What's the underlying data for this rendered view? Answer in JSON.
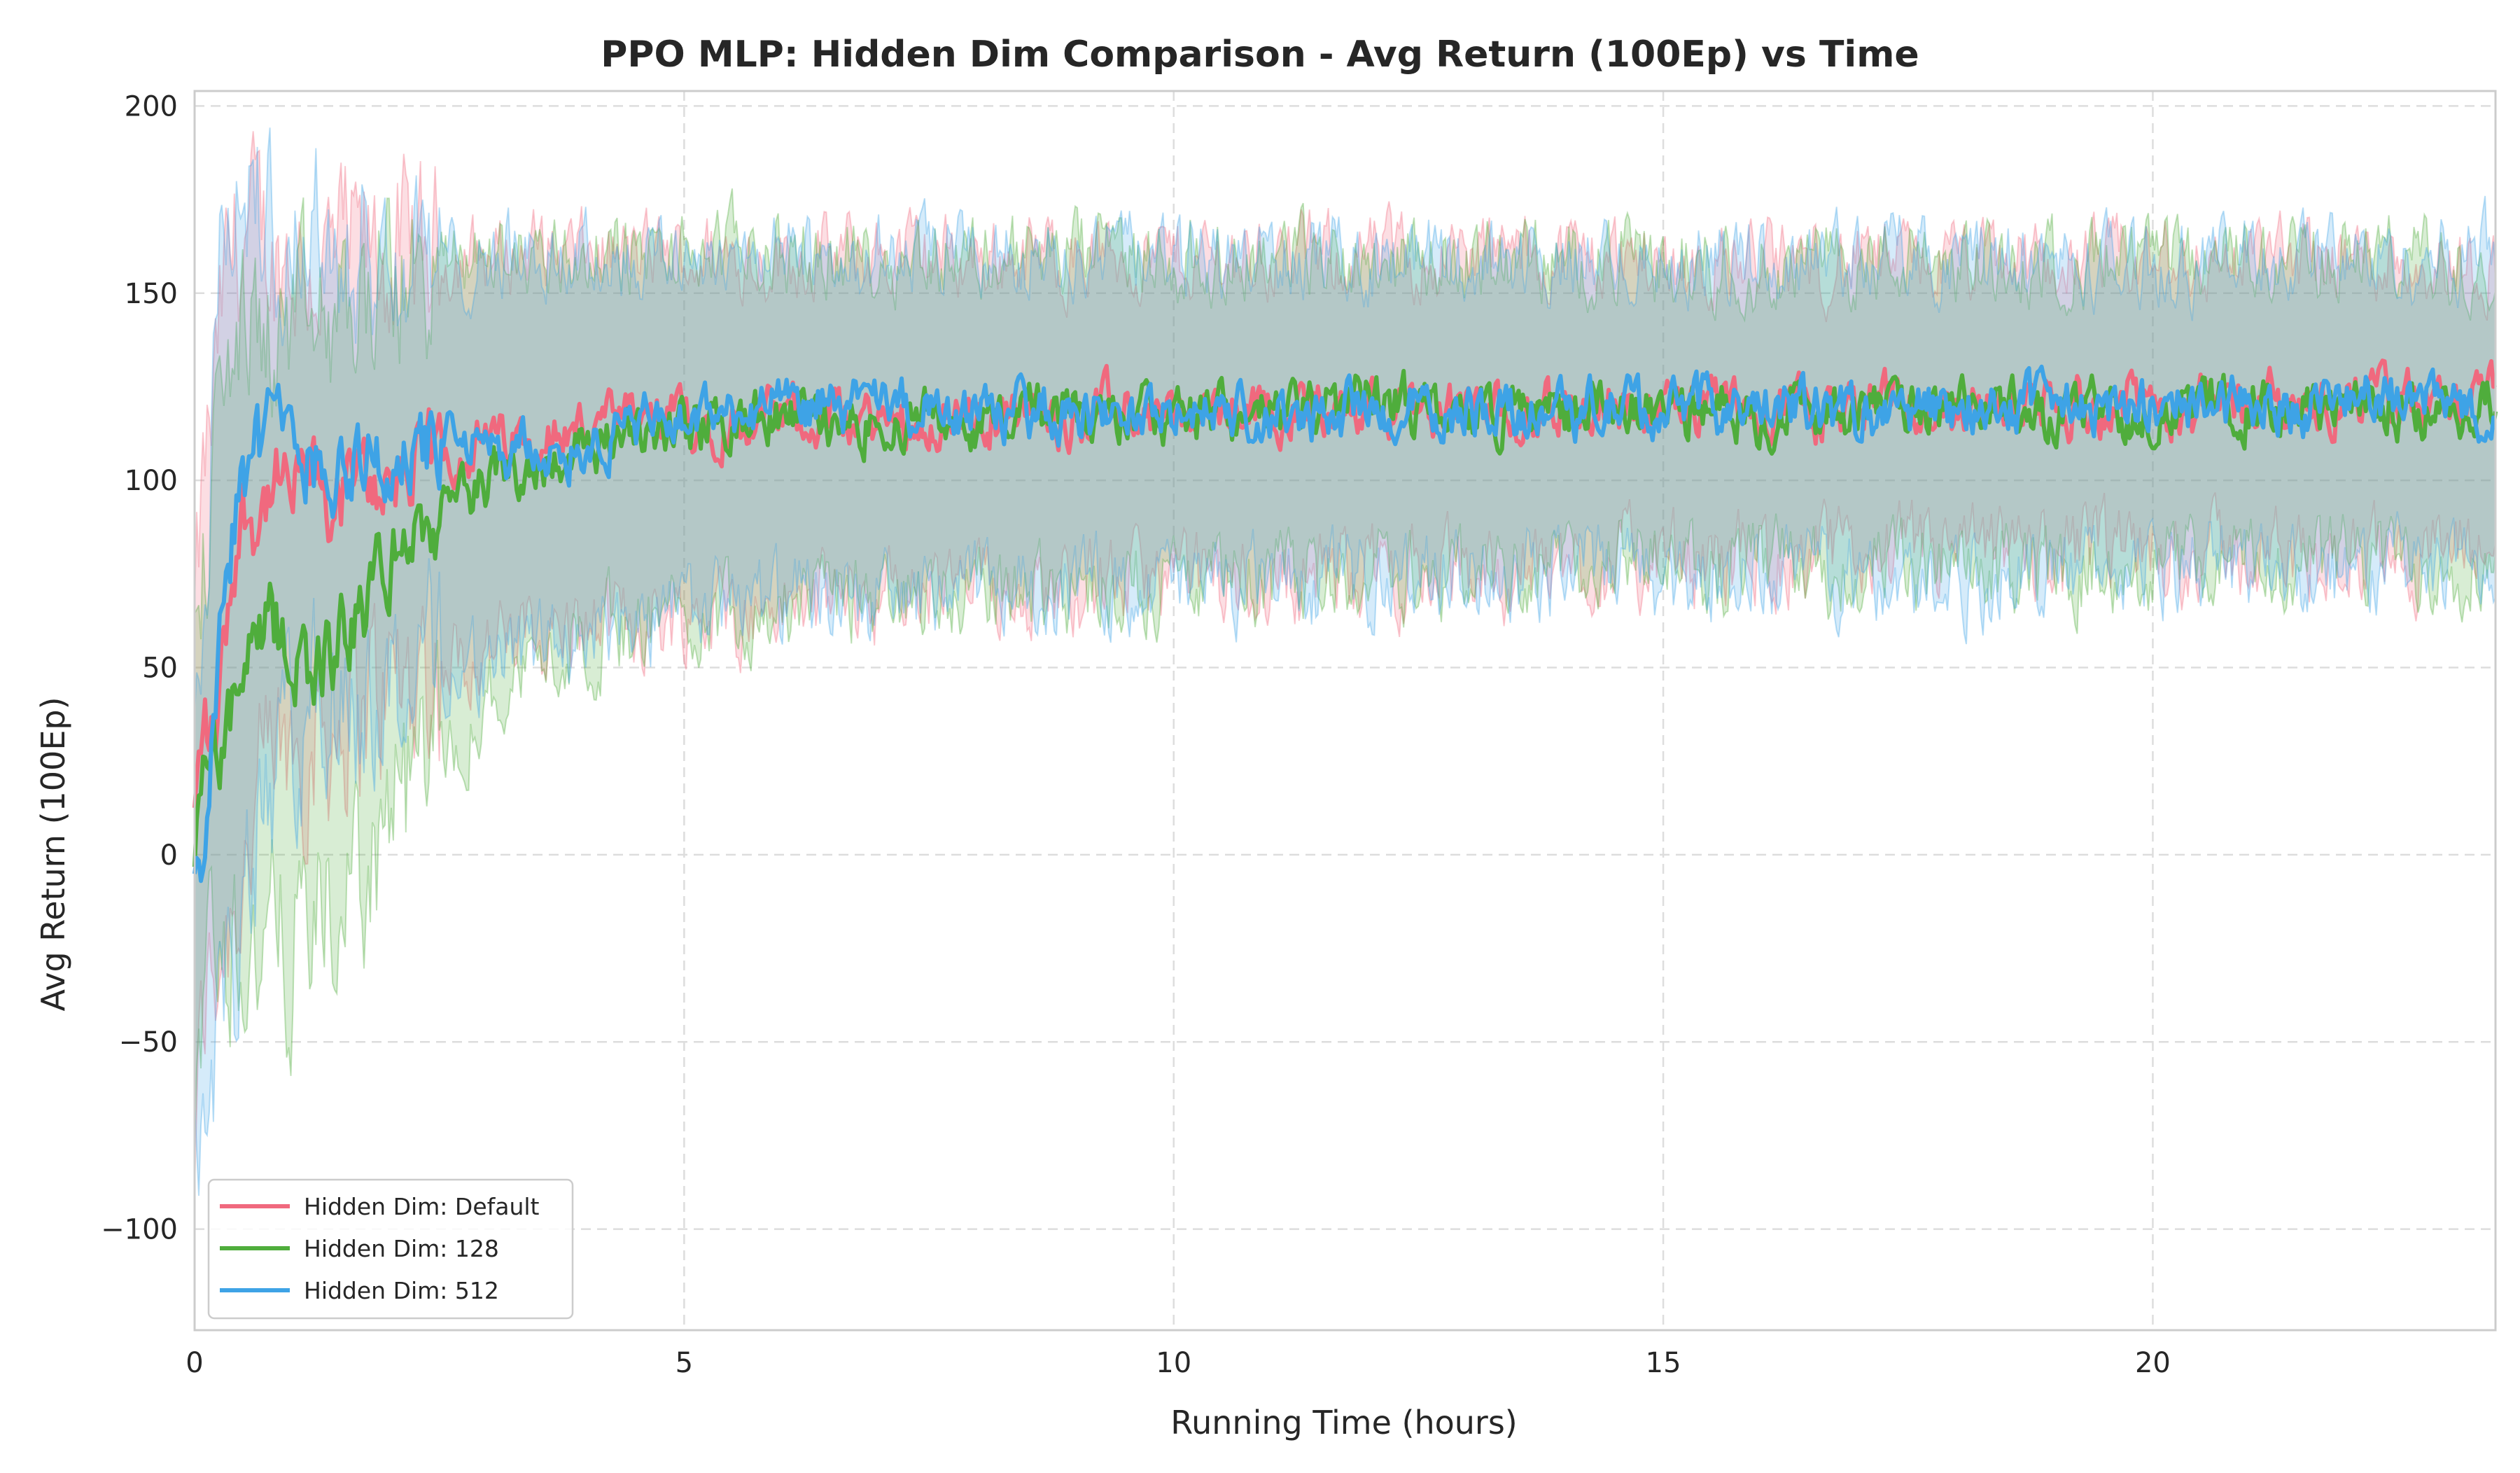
{
  "chart_data": {
    "type": "line",
    "title": "PPO MLP: Hidden Dim Comparison - Avg Return (100Ep) vs Time",
    "xlabel": "Running Time (hours)",
    "ylabel": "Avg Return (100Ep)",
    "xlim": [
      0,
      23.5
    ],
    "ylim": [
      -127,
      204
    ],
    "xticks": [
      0,
      5,
      10,
      15,
      20
    ],
    "yticks": [
      -100,
      -50,
      0,
      50,
      100,
      150,
      200
    ],
    "xtick_labels": [
      "0",
      "5",
      "10",
      "15",
      "20"
    ],
    "ytick_labels": [
      "−100",
      "−50",
      "0",
      "50",
      "100",
      "150",
      "200"
    ],
    "grid": true,
    "legend_position": "lower-left",
    "series": [
      {
        "name": "Hidden Dim: Default",
        "color": "#f0697e",
        "x": [
          0,
          0.1,
          0.2,
          0.3,
          0.4,
          0.5,
          0.6,
          0.8,
          1.0,
          1.2,
          1.4,
          1.6,
          1.8,
          2.0,
          2.3,
          2.6,
          3.0,
          3.5,
          4.0,
          4.5,
          5.0,
          5.5,
          6.0,
          6.5,
          7.0,
          7.5,
          8.0,
          8.5,
          9.0,
          9.5,
          10.0,
          10.5,
          11.0,
          11.5,
          12.0,
          12.5,
          13.0,
          13.5,
          14.0,
          14.5,
          15.0,
          15.5,
          16.0,
          16.5,
          17.0,
          17.5,
          18.0,
          18.5,
          19.0,
          19.5,
          20.0,
          20.5,
          21.0,
          21.5,
          22.0,
          22.5,
          23.0,
          23.5
        ],
        "y": [
          10,
          35,
          30,
          55,
          80,
          92,
          90,
          98,
          95,
          100,
          92,
          100,
          97,
          103,
          102,
          108,
          110,
          112,
          114,
          115,
          116,
          116,
          117,
          118,
          115,
          117,
          116,
          118,
          117,
          119,
          117,
          118,
          119,
          120,
          121,
          120,
          119,
          118,
          119,
          120,
          118,
          119,
          120,
          118,
          119,
          120,
          121,
          120,
          119,
          120,
          121,
          120,
          122,
          120,
          121,
          122,
          120,
          121
        ],
        "upper": [
          60,
          100,
          120,
          150,
          160,
          165,
          165,
          160,
          160,
          158,
          158,
          160,
          158,
          160,
          158,
          160,
          160,
          162,
          160,
          160,
          160,
          160,
          160,
          160,
          160,
          160,
          160,
          160,
          160,
          160,
          160,
          160,
          160,
          160,
          160,
          160,
          160,
          160,
          160,
          160,
          158,
          158,
          158,
          158,
          158,
          158,
          158,
          158,
          158,
          158,
          158,
          158,
          160,
          160,
          160,
          160,
          158,
          158
        ],
        "lower": [
          -80,
          -40,
          -30,
          -20,
          -10,
          0,
          10,
          20,
          30,
          35,
          35,
          40,
          42,
          45,
          48,
          52,
          55,
          58,
          60,
          62,
          64,
          65,
          66,
          68,
          68,
          70,
          70,
          72,
          72,
          73,
          72,
          73,
          74,
          75,
          76,
          75,
          75,
          75,
          76,
          78,
          78,
          78,
          80,
          78,
          80,
          80,
          80,
          80,
          80,
          80,
          80,
          80,
          80,
          80,
          80,
          80,
          80,
          80
        ]
      },
      {
        "name": "Hidden Dim: 128",
        "color": "#4fad3c",
        "x": [
          0,
          0.1,
          0.2,
          0.3,
          0.4,
          0.5,
          0.6,
          0.8,
          1.0,
          1.2,
          1.4,
          1.6,
          1.8,
          2.0,
          2.3,
          2.6,
          3.0,
          3.5,
          4.0,
          4.5,
          5.0,
          5.5,
          6.0,
          6.5,
          7.0,
          7.5,
          8.0,
          8.5,
          9.0,
          9.5,
          10.0,
          10.5,
          11.0,
          11.5,
          12.0,
          12.5,
          13.0,
          13.5,
          14.0,
          14.5,
          15.0,
          15.5,
          16.0,
          16.5,
          17.0,
          17.5,
          18.0,
          18.5,
          19.0,
          19.5,
          20.0,
          20.5,
          21.0,
          21.5,
          22.0,
          22.5,
          23.0,
          23.5
        ],
        "y": [
          0,
          28,
          30,
          32,
          38,
          45,
          52,
          60,
          55,
          50,
          55,
          60,
          70,
          80,
          85,
          92,
          100,
          105,
          110,
          112,
          114,
          115,
          116,
          117,
          116,
          117,
          116,
          118,
          117,
          118,
          116,
          118,
          117,
          119,
          121,
          120,
          118,
          119,
          118,
          120,
          118,
          119,
          118,
          120,
          118,
          119,
          118,
          120,
          118,
          119,
          118,
          119,
          120,
          118,
          120,
          119,
          118,
          120
        ],
        "upper": [
          50,
          80,
          100,
          120,
          140,
          140,
          140,
          138,
          138,
          140,
          140,
          145,
          150,
          152,
          155,
          158,
          160,
          160,
          160,
          160,
          160,
          162,
          160,
          160,
          160,
          160,
          160,
          160,
          160,
          160,
          158,
          160,
          160,
          160,
          160,
          160,
          158,
          160,
          158,
          160,
          158,
          158,
          158,
          158,
          158,
          158,
          158,
          158,
          158,
          158,
          158,
          158,
          160,
          160,
          160,
          160,
          158,
          160
        ],
        "lower": [
          -60,
          -30,
          -25,
          -20,
          -20,
          -20,
          -25,
          -25,
          -22,
          -20,
          -15,
          -10,
          0,
          10,
          20,
          30,
          42,
          52,
          58,
          62,
          64,
          66,
          67,
          68,
          68,
          70,
          70,
          72,
          72,
          73,
          72,
          73,
          74,
          75,
          76,
          75,
          75,
          75,
          76,
          78,
          78,
          76,
          78,
          76,
          76,
          76,
          74,
          76,
          76,
          78,
          78,
          78,
          78,
          78,
          78,
          78,
          78,
          78
        ]
      },
      {
        "name": "Hidden Dim: 512",
        "color": "#3ea3e6",
        "x": [
          0,
          0.1,
          0.2,
          0.3,
          0.4,
          0.5,
          0.6,
          0.8,
          1.0,
          1.2,
          1.4,
          1.6,
          1.8,
          2.0,
          2.3,
          2.6,
          3.0,
          3.5,
          4.0,
          4.5,
          5.0,
          5.5,
          6.0,
          6.5,
          7.0,
          7.5,
          8.0,
          8.5,
          9.0,
          9.5,
          10.0,
          10.5,
          11.0,
          11.5,
          12.0,
          12.5,
          13.0,
          13.5,
          14.0,
          14.5,
          15.0,
          15.5,
          16.0,
          16.5,
          17.0,
          17.5,
          18.0,
          18.5,
          19.0,
          19.5,
          20.0,
          20.5,
          21.0,
          21.5,
          22.0,
          22.5,
          23.0,
          23.5
        ],
        "y": [
          -12,
          5,
          40,
          80,
          90,
          100,
          108,
          112,
          110,
          108,
          106,
          105,
          104,
          106,
          108,
          110,
          108,
          107,
          110,
          114,
          116,
          118,
          119,
          120,
          118,
          119,
          117,
          118,
          119,
          118,
          117,
          118,
          116,
          117,
          118,
          119,
          118,
          120,
          119,
          120,
          118,
          119,
          118,
          119,
          117,
          118,
          120,
          121,
          119,
          118,
          120,
          119,
          121,
          120,
          122,
          120,
          121,
          120
        ],
        "upper": [
          20,
          60,
          140,
          170,
          172,
          175,
          175,
          172,
          170,
          168,
          165,
          162,
          160,
          158,
          158,
          158,
          160,
          160,
          160,
          160,
          160,
          162,
          160,
          160,
          160,
          160,
          160,
          160,
          160,
          160,
          158,
          160,
          160,
          160,
          160,
          160,
          158,
          160,
          158,
          160,
          158,
          160,
          158,
          160,
          160,
          162,
          160,
          160,
          158,
          158,
          158,
          158,
          160,
          160,
          160,
          160,
          160,
          162
        ],
        "lower": [
          -80,
          -60,
          -50,
          -40,
          -30,
          -20,
          0,
          20,
          35,
          40,
          40,
          42,
          44,
          46,
          48,
          50,
          52,
          55,
          58,
          62,
          64,
          66,
          67,
          68,
          68,
          70,
          70,
          72,
          72,
          73,
          72,
          73,
          72,
          72,
          74,
          75,
          75,
          75,
          76,
          76,
          74,
          74,
          74,
          76,
          74,
          72,
          74,
          74,
          76,
          76,
          76,
          78,
          78,
          76,
          76,
          76,
          74,
          74
        ]
      }
    ]
  }
}
